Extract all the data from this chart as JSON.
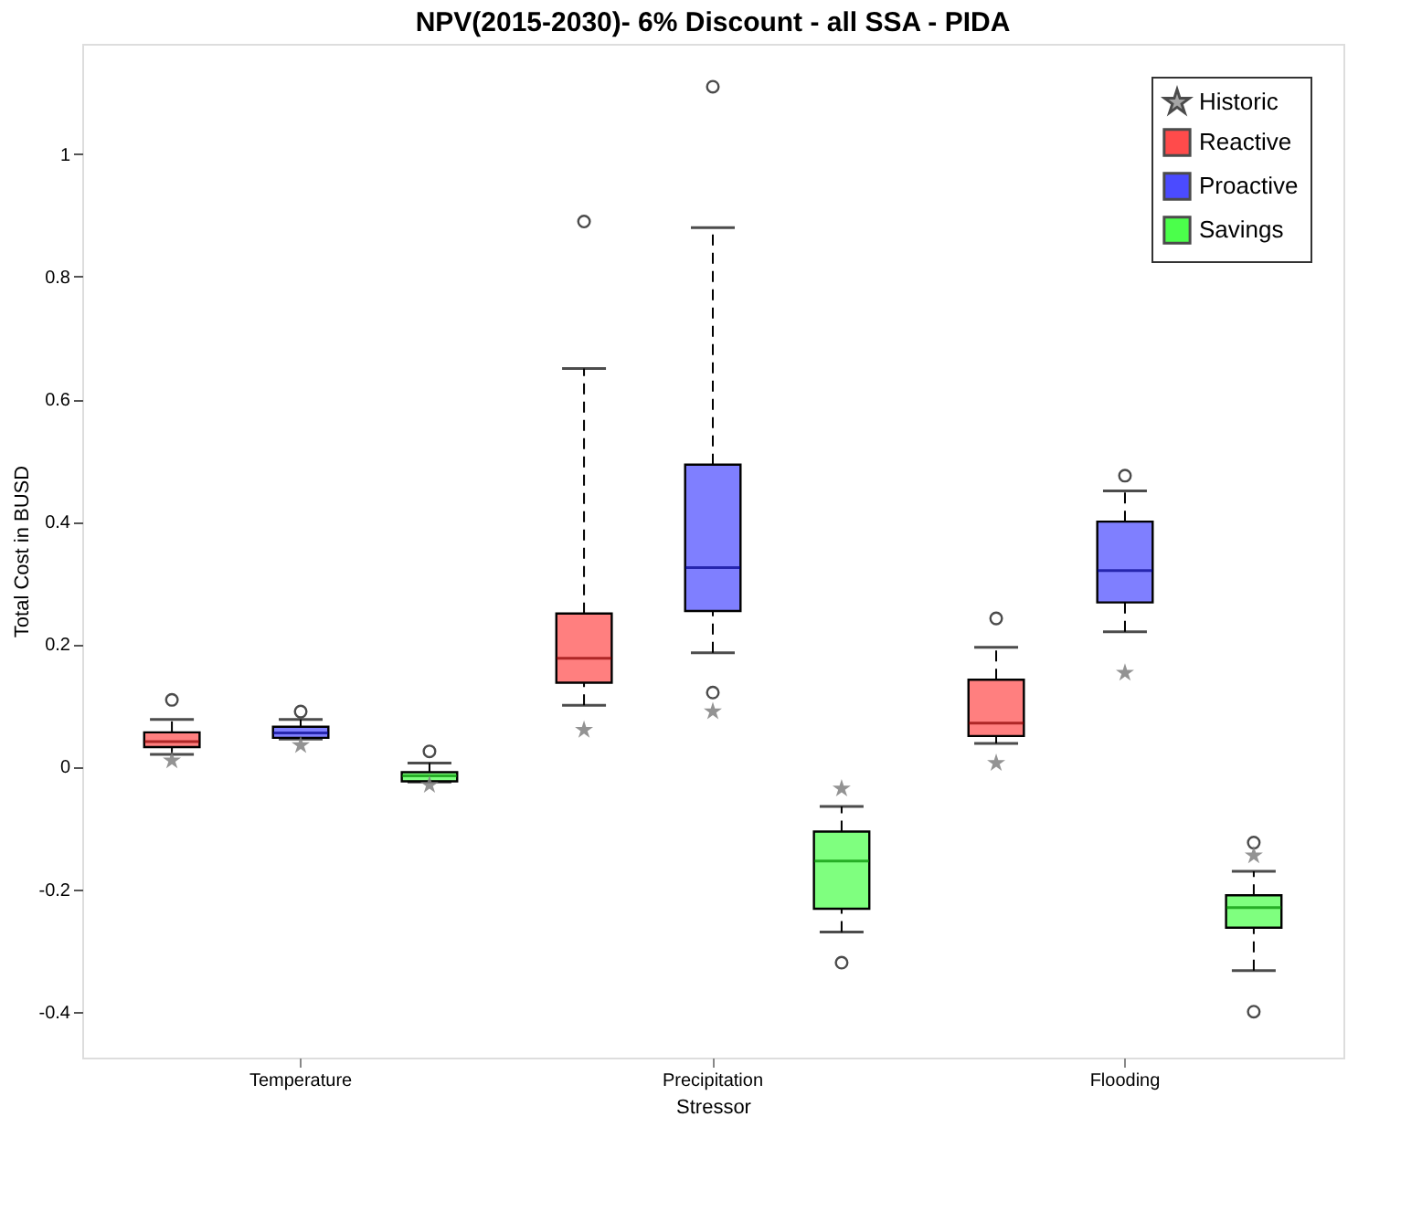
{
  "chart_data": {
    "type": "box",
    "title": "NPV(2015-2030)- 6% Discount - all SSA - PIDA",
    "xlabel": "Stressor",
    "ylabel": "Total Cost in BUSD",
    "categories": [
      "Temperature",
      "Precipitation",
      "Flooding"
    ],
    "series": [
      {
        "name": "Historic",
        "type": "scatter",
        "color": "#808080",
        "marker": "star",
        "x": [
          "Temperature",
          "Temperature",
          "Temperature",
          "Precipitation",
          "Precipitation",
          "Precipitation",
          "Flooding",
          "Flooding",
          "Flooding"
        ],
        "values": [
          0.01,
          0.035,
          -0.03,
          0.06,
          0.09,
          -0.036,
          0.006,
          0.153,
          -0.145
        ]
      },
      {
        "name": "Reactive",
        "type": "box",
        "color": "#ff0000",
        "boxes": [
          {
            "low": 0.02,
            "q1": 0.032,
            "median": 0.041,
            "q3": 0.056,
            "high": 0.077,
            "outliers": [
              0.109
            ]
          },
          {
            "low": 0.1,
            "q1": 0.137,
            "median": 0.177,
            "q3": 0.25,
            "high": 0.65,
            "outliers": [
              0.89
            ]
          },
          {
            "low": 0.038,
            "q1": 0.05,
            "median": 0.071,
            "q3": 0.142,
            "high": 0.195,
            "outliers": [
              0.242
            ]
          }
        ]
      },
      {
        "name": "Proactive",
        "type": "box",
        "color": "#0000ff",
        "boxes": [
          {
            "low": 0.045,
            "q1": 0.047,
            "median": 0.055,
            "q3": 0.065,
            "high": 0.077,
            "outliers": [
              0.09
            ]
          },
          {
            "low": 0.186,
            "q1": 0.254,
            "median": 0.325,
            "q3": 0.493,
            "high": 0.88,
            "outliers": [
              1.11,
              0.121
            ]
          },
          {
            "low": 0.22,
            "q1": 0.268,
            "median": 0.32,
            "q3": 0.4,
            "high": 0.45,
            "outliers": [
              0.475
            ]
          }
        ]
      },
      {
        "name": "Savings",
        "type": "box",
        "color": "#00ff00",
        "boxes": [
          {
            "low": -0.025,
            "q1": -0.024,
            "median": -0.015,
            "q3": -0.009,
            "high": 0.006,
            "outliers": [
              0.025
            ]
          },
          {
            "low": -0.27,
            "q1": -0.232,
            "median": -0.154,
            "q3": -0.106,
            "high": -0.065,
            "outliers": [
              -0.32
            ]
          },
          {
            "low": -0.333,
            "q1": -0.263,
            "median": -0.23,
            "q3": -0.21,
            "high": -0.171,
            "outliers": [
              -0.124,
              -0.4
            ]
          }
        ]
      }
    ],
    "ylim": [
      -0.475,
      1.18
    ],
    "yticks": [
      -0.4,
      -0.2,
      0,
      0.2,
      0.4,
      0.6,
      0.8,
      1
    ],
    "grid": false,
    "legend": "top right"
  }
}
